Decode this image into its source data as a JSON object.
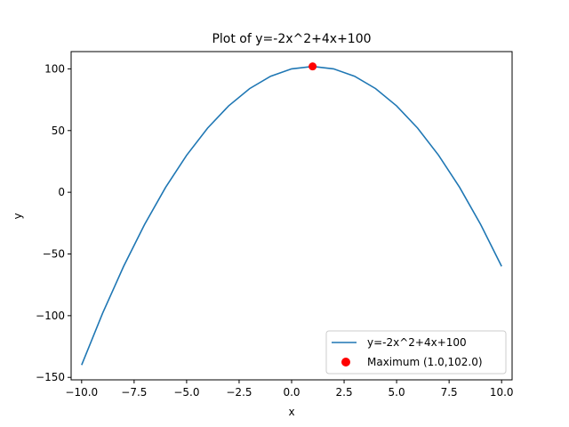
{
  "chart_data": {
    "type": "line",
    "title": "Plot of y=-2x^2+4x+100",
    "xlabel": "x",
    "ylabel": "y",
    "xlim": [
      -10.5,
      10.5
    ],
    "ylim": [
      -152,
      114
    ],
    "grid": false,
    "legend_position": "lower-right",
    "x_ticks": [
      -10,
      -7.5,
      -5,
      -2.5,
      0,
      2.5,
      5,
      7.5,
      10
    ],
    "x_tick_labels": [
      "−10.0",
      "−7.5",
      "−5.0",
      "−2.5",
      "0.0",
      "2.5",
      "5.0",
      "7.5",
      "10.0"
    ],
    "y_ticks": [
      -150,
      -100,
      -50,
      0,
      50,
      100
    ],
    "y_tick_labels": [
      "−150",
      "−100",
      "−50",
      "0",
      "50",
      "100"
    ],
    "series": [
      {
        "name": "y=-2x^2+4x+100",
        "color": "#1f77b4",
        "x": [
          -10,
          -9,
          -8,
          -7,
          -6,
          -5,
          -4,
          -3,
          -2,
          -1,
          0,
          1,
          2,
          3,
          4,
          5,
          6,
          7,
          8,
          9,
          10
        ],
        "y": [
          -140,
          -98,
          -60,
          -26,
          4,
          30,
          52,
          70,
          84,
          94,
          100,
          102,
          100,
          94,
          84,
          70,
          52,
          30,
          4,
          -26,
          -60
        ]
      }
    ],
    "points": [
      {
        "name": "Maximum (1.0,102.0)",
        "color": "#ff0000",
        "x": 1.0,
        "y": 102.0
      }
    ]
  }
}
